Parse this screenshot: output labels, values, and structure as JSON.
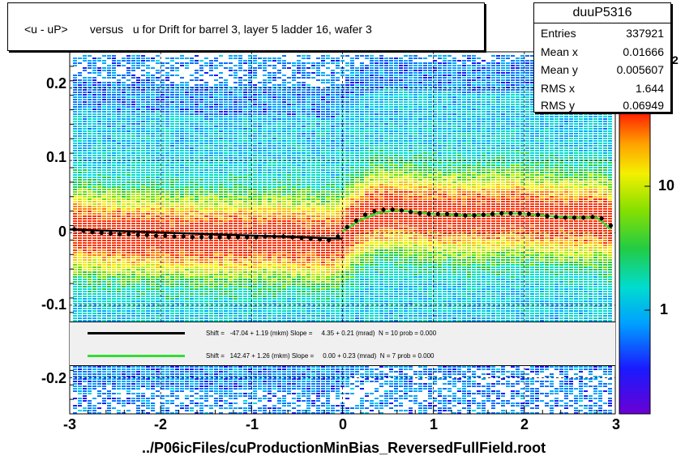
{
  "title": "<u - uP>       versus   u for Drift for barrel 3, layer 5 ladder 16, wafer 3",
  "xlabel": "../P06icFiles/cuProductionMinBias_ReversedFullField.root",
  "stats": {
    "name": "duuP5316",
    "rows": [
      {
        "label": "Entries",
        "value": "337921"
      },
      {
        "label": "Mean x",
        "value": "0.01666"
      },
      {
        "label": "Mean y",
        "value": "0.005607"
      },
      {
        "label": "RMS x",
        "value": "1.644"
      },
      {
        "label": "RMS y",
        "value": "0.06949"
      }
    ]
  },
  "legend": [
    {
      "color": "#000000",
      "text": "Shift =   -47.04 + 1.19 (mkm) Slope =     4.35 + 0.21 (mrad)  N = 10 prob = 0.000"
    },
    {
      "color": "#33dd33",
      "text": "Shift =   142.47 + 1.26 (mkm) Slope =     0.00 + 0.23 (mrad)  N = 7 prob = 0.000"
    }
  ],
  "colorbar": {
    "labels": [
      "10",
      "1"
    ],
    "exponent_fragment": "2"
  },
  "chart_data": {
    "type": "heatmap",
    "xlim": [
      -3,
      3
    ],
    "ylim": [
      -0.25,
      0.25
    ],
    "x_ticks": [
      "-3",
      "-2",
      "-1",
      "0",
      "1",
      "2",
      "3"
    ],
    "y_ticks": [
      "0.2",
      "0.1",
      "0",
      "-0.1",
      "-0.2"
    ],
    "y_tick_values": [
      0.2,
      0.1,
      0,
      -0.1,
      -0.2
    ],
    "x_tick_values": [
      -3,
      -2,
      -1,
      0,
      1,
      2,
      3
    ],
    "profile_points": {
      "x": [
        -2.95,
        -2.85,
        -2.75,
        -2.65,
        -2.55,
        -2.45,
        -2.35,
        -2.25,
        -2.15,
        -2.05,
        -1.95,
        -1.85,
        -1.75,
        -1.65,
        -1.55,
        -1.45,
        -1.35,
        -1.25,
        -1.15,
        -1.05,
        -0.95,
        -0.85,
        -0.75,
        -0.65,
        -0.55,
        -0.45,
        -0.35,
        -0.25,
        -0.15,
        -0.05,
        0.05,
        0.15,
        0.25,
        0.35,
        0.45,
        0.55,
        0.65,
        0.75,
        0.85,
        0.95,
        1.05,
        1.15,
        1.25,
        1.35,
        1.45,
        1.55,
        1.65,
        1.75,
        1.85,
        1.95,
        2.05,
        2.15,
        2.25,
        2.35,
        2.45,
        2.55,
        2.65,
        2.75,
        2.85,
        2.95
      ],
      "y": [
        0.005,
        0.003,
        0.001,
        0.0,
        -0.001,
        -0.002,
        -0.002,
        -0.003,
        -0.003,
        -0.004,
        -0.004,
        -0.005,
        -0.005,
        -0.006,
        -0.006,
        -0.006,
        -0.006,
        -0.006,
        -0.006,
        -0.006,
        -0.006,
        -0.005,
        -0.005,
        -0.005,
        -0.006,
        -0.007,
        -0.008,
        -0.009,
        -0.01,
        -0.005,
        0.008,
        0.017,
        0.025,
        0.03,
        0.032,
        0.032,
        0.031,
        0.029,
        0.027,
        0.026,
        0.026,
        0.026,
        0.025,
        0.024,
        0.024,
        0.025,
        0.026,
        0.027,
        0.027,
        0.027,
        0.026,
        0.025,
        0.023,
        0.022,
        0.021,
        0.021,
        0.021,
        0.022,
        0.02,
        0.01
      ]
    },
    "fit_black": {
      "x": [
        -3,
        0
      ],
      "y": [
        0.0047,
        -0.008
      ]
    },
    "fit_green": {
      "x": [
        0.0,
        0.2,
        0.4,
        0.6,
        0.8,
        1.0,
        1.2,
        1.4,
        1.6,
        1.8,
        2.0,
        2.2,
        2.4,
        2.6,
        2.8,
        2.95
      ],
      "y": [
        0.002,
        0.018,
        0.028,
        0.031,
        0.029,
        0.026,
        0.025,
        0.024,
        0.025,
        0.027,
        0.026,
        0.024,
        0.022,
        0.021,
        0.021,
        0.005
      ]
    },
    "grid": true,
    "legend_position": "bottom-center"
  }
}
